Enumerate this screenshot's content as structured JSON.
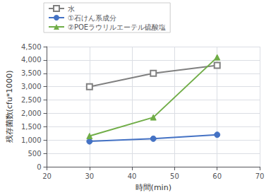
{
  "chart_data": {
    "type": "line",
    "xlabel": "時間(min)",
    "ylabel": "残存菌数(cfu*1000)",
    "x": [
      30,
      45,
      60
    ],
    "series": [
      {
        "name": "水",
        "color": "#808080",
        "marker": "square",
        "values": [
          3000,
          3500,
          3800
        ]
      },
      {
        "name": "①石けん系成分",
        "color": "#4472C4",
        "marker": "circle",
        "values": [
          950,
          1050,
          1200
        ]
      },
      {
        "name": "②POEラウリルエーテル硫酸塩",
        "color": "#70AD47",
        "marker": "triangle",
        "values": [
          1150,
          1850,
          4100
        ]
      }
    ],
    "xlim": [
      20,
      70
    ],
    "xticks": [
      20,
      30,
      40,
      50,
      60,
      70
    ],
    "ylim": [
      0,
      4500
    ],
    "yticks": [
      0,
      500,
      1000,
      1500,
      2000,
      2500,
      3000,
      3500,
      4000,
      4500
    ],
    "grid": true,
    "legend": "upper left"
  }
}
